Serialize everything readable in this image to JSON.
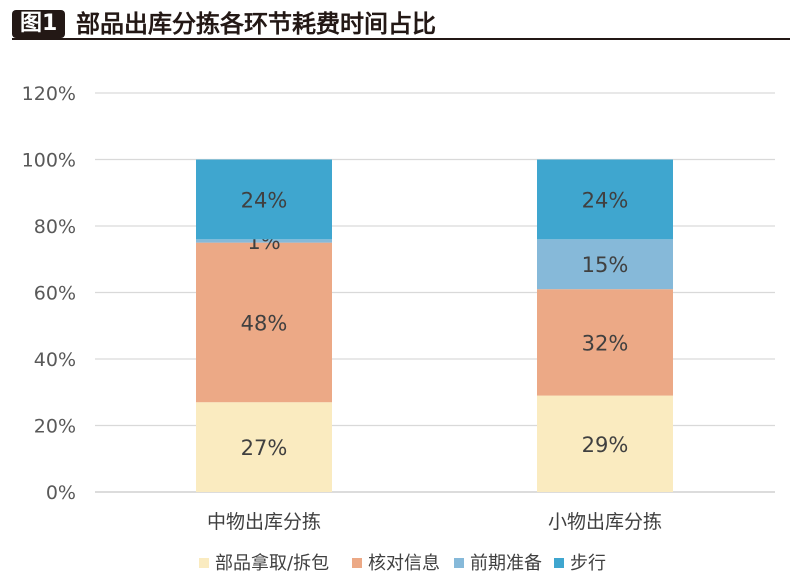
{
  "header": {
    "badge": "图1",
    "title": "部品出库分拣各环节耗费时间占比"
  },
  "chart_data": {
    "type": "bar",
    "stacked": true,
    "categories": [
      "中物出库分拣",
      "小物出库分拣"
    ],
    "series": [
      {
        "name": "部品拿取/拆包",
        "values": [
          27,
          29
        ],
        "labels": [
          "27%",
          "29%"
        ],
        "color": "#FAEBC0"
      },
      {
        "name": "核对信息",
        "values": [
          48,
          32
        ],
        "labels": [
          "48%",
          "32%"
        ],
        "color": "#ECA986"
      },
      {
        "name": "前期准备",
        "values": [
          1,
          15
        ],
        "labels": [
          "1%",
          "15%"
        ],
        "color": "#86B9D9"
      },
      {
        "name": "步行",
        "values": [
          24,
          24
        ],
        "labels": [
          "24%",
          "24%"
        ],
        "color": "#3FA6CF"
      }
    ],
    "ylim": [
      0,
      120
    ],
    "yticks": [
      "0%",
      "20%",
      "40%",
      "60%",
      "80%",
      "100%",
      "120%"
    ],
    "grid": true,
    "legend_position": "bottom"
  }
}
